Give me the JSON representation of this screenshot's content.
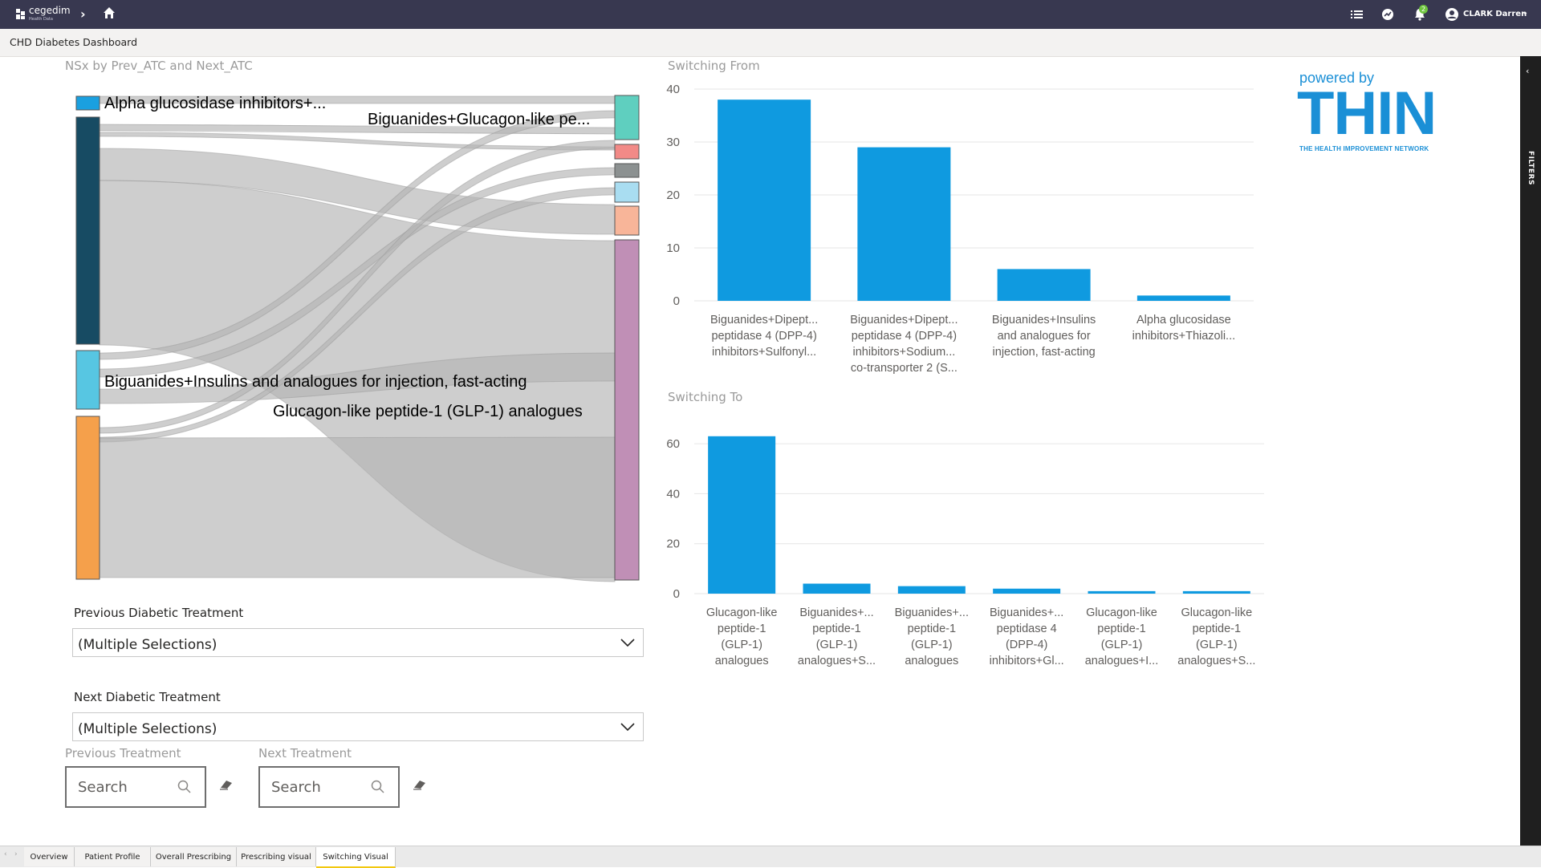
{
  "app": {
    "logo_text": "cegedim",
    "logo_sub": "Health Data"
  },
  "user": {
    "name": "CLARK Darren",
    "notifications": "2"
  },
  "page_title": "CHD Diabetes Dashboard",
  "filter_pane": {
    "label": "FILTERS"
  },
  "sankey": {
    "title": "NSx by Prev_ATC and Next_ATC",
    "labels": {
      "alpha": "Alpha glucosidase inhibitors+...",
      "big_glp": "Biguanides+Glucagon-like pe...",
      "big_ins": "Biguanides+Insulins and analogues for injection, fast-acting",
      "glp1": "Glucagon-like peptide-1 (GLP-1) analogues"
    },
    "colors": {
      "alpha": "#1aa0e0",
      "dark": "#174b63",
      "cyan": "#57c6e2",
      "orange": "#f5a04b",
      "teal": "#5fcfbf",
      "red": "#f28a87",
      "grey": "#8c9191",
      "lightblue": "#a9ddf1",
      "peach": "#f8b599",
      "mauve": "#c08fb6",
      "flow": "#b4b4b4"
    }
  },
  "slicers": {
    "previous": {
      "label": "Previous Diabetic Treatment",
      "value": "(Multiple Selections)"
    },
    "next": {
      "label": "Next Diabetic Treatment",
      "value": "(Multiple Selections)"
    }
  },
  "search": {
    "previous": {
      "label": "Previous Treatment",
      "placeholder": "Search"
    },
    "next": {
      "label": "Next Treatment",
      "placeholder": "Search"
    }
  },
  "brand": {
    "powered_by": "powered by",
    "name": "THIN",
    "tagline": "THE HEALTH IMPROVEMENT NETWORK",
    "color": "#1a8fd6"
  },
  "chart_data": [
    {
      "type": "bar",
      "title": "Switching From",
      "categories": [
        [
          "Biguanides+Dipept...",
          "peptidase 4 (DPP-4)",
          "inhibitors+Sulfonyl..."
        ],
        [
          "Biguanides+Dipept...",
          "peptidase 4 (DPP-4)",
          "inhibitors+Sodium...",
          "co-transporter 2 (S..."
        ],
        [
          "Biguanides+Insulins",
          "and analogues for",
          "injection, fast-acting"
        ],
        [
          "Alpha glucosidase",
          "inhibitors+Thiazoli..."
        ]
      ],
      "values": [
        38,
        29,
        6,
        1
      ],
      "ylim": [
        0,
        40
      ],
      "yticks": [
        0,
        10,
        20,
        30,
        40
      ],
      "color": "#0f9ae0"
    },
    {
      "type": "bar",
      "title": "Switching To",
      "categories": [
        [
          "Glucagon-like",
          "peptide-1",
          "(GLP-1)",
          "analogues"
        ],
        [
          "Biguanides+...",
          "peptide-1",
          "(GLP-1)",
          "analogues+S..."
        ],
        [
          "Biguanides+...",
          "peptide-1",
          "(GLP-1)",
          "analogues"
        ],
        [
          "Biguanides+...",
          "peptidase 4",
          "(DPP-4)",
          "inhibitors+Gl..."
        ],
        [
          "Glucagon-like",
          "peptide-1",
          "(GLP-1)",
          "analogues+I..."
        ],
        [
          "Glucagon-like",
          "peptide-1",
          "(GLP-1)",
          "analogues+S..."
        ]
      ],
      "values": [
        63,
        4,
        3,
        2,
        1,
        1
      ],
      "ylim": [
        0,
        70
      ],
      "yticks": [
        0,
        20,
        40,
        60
      ],
      "color": "#0f9ae0"
    }
  ],
  "tabs": [
    {
      "label": "Overview",
      "active": false
    },
    {
      "label": "Patient Profile",
      "active": false
    },
    {
      "label": "Overall Prescribing",
      "active": false
    },
    {
      "label": "Prescribing visual",
      "active": false
    },
    {
      "label": "Switching Visual",
      "active": true
    }
  ]
}
